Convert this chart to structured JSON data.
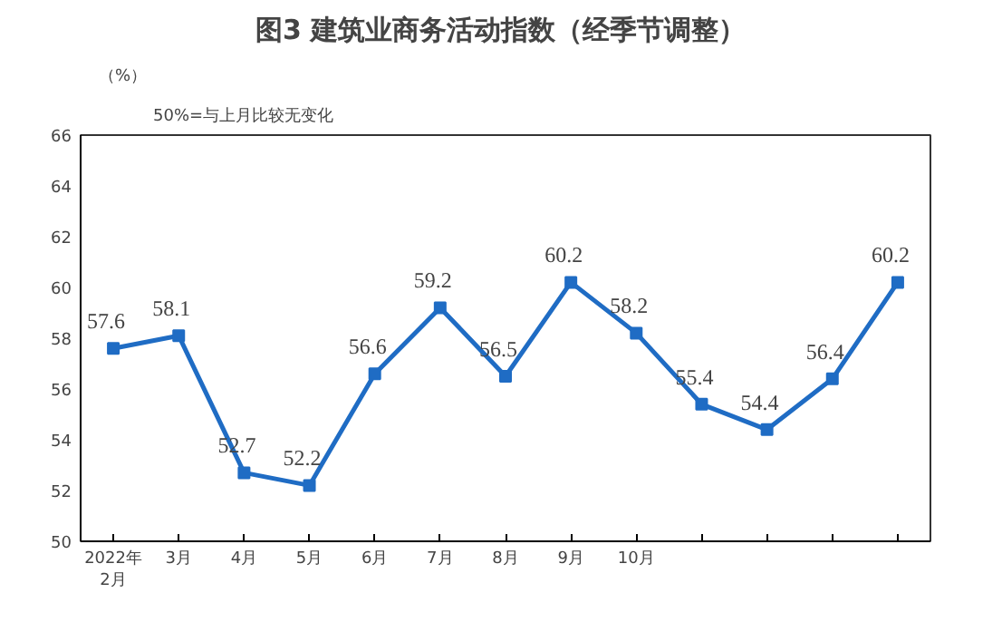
{
  "chart_data": {
    "type": "line",
    "title": "图3  建筑业商务活动指数（经季节调整）",
    "ylabel": "（%）",
    "annotations": [
      "50%=与上月比较无变化"
    ],
    "categories": [
      "2022年\n2月",
      "3月",
      "4月",
      "5月",
      "6月",
      "7月",
      "8月",
      "9月",
      "10月",
      null,
      null,
      null,
      null
    ],
    "series": [
      {
        "color": "#1f6cc4",
        "values": [
          57.6,
          58.1,
          52.7,
          52.2,
          56.6,
          59.2,
          56.5,
          60.2,
          58.2,
          55.4,
          54.4,
          56.4,
          60.2
        ]
      }
    ],
    "ylim": [
      50,
      66
    ],
    "yticks": [
      50,
      52,
      54,
      56,
      58,
      60,
      62,
      64,
      66
    ],
    "data_labels": true,
    "marker": "square",
    "grid": false
  }
}
